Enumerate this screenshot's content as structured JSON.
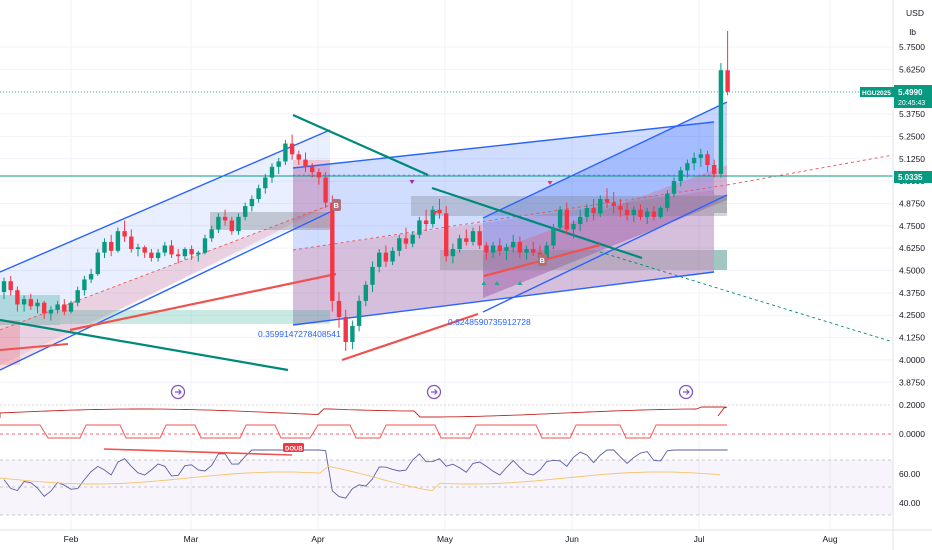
{
  "header": {
    "currency": "USD",
    "unit": "lb"
  },
  "ticker": {
    "symbol": "HGU2025",
    "price": "5.4990",
    "countdown": "20:45:43",
    "level_label": "5.0335",
    "color": "#089981"
  },
  "annotations": {
    "fib_left": "0.3599147278408541",
    "fib_right": "0.8248590735912728",
    "tag_b": "B",
    "tag_doub": "DOUB"
  },
  "colors": {
    "up": "#089981",
    "down": "#f23645",
    "channel_blue": "#2962ff",
    "teal_line": "#00897b",
    "red_line": "#ef5350",
    "osc_line": "#5b5ea6",
    "signal_line": "#f5c26b"
  },
  "chart_data": {
    "type": "candlestick",
    "instrument": "HGU2025",
    "currency": "USD",
    "unit": "lb",
    "price_axis": {
      "ticks": [
        "5.7500",
        "5.6250",
        "5.5000",
        "5.3750",
        "5.2500",
        "5.1250",
        "5.0000",
        "4.8750",
        "4.7500",
        "4.6250",
        "4.5000",
        "4.3750",
        "4.2500",
        "4.1250",
        "4.0000",
        "3.8750"
      ],
      "range": [
        3.82,
        5.86
      ]
    },
    "x_axis": {
      "labels": [
        "Feb",
        "Mar",
        "Apr",
        "May",
        "Jun",
        "Jul",
        "Aug"
      ]
    },
    "last_price": 5.499,
    "horizontal_level": 5.0335,
    "candles": [
      [
        4.38,
        4.46,
        4.34,
        4.44
      ],
      [
        4.44,
        4.47,
        4.36,
        4.39
      ],
      [
        4.39,
        4.41,
        4.27,
        4.31
      ],
      [
        4.31,
        4.36,
        4.27,
        4.34
      ],
      [
        4.34,
        4.37,
        4.28,
        4.3
      ],
      [
        4.3,
        4.34,
        4.26,
        4.32
      ],
      [
        4.32,
        4.33,
        4.23,
        4.26
      ],
      [
        4.26,
        4.3,
        4.22,
        4.28
      ],
      [
        4.28,
        4.33,
        4.26,
        4.31
      ],
      [
        4.31,
        4.34,
        4.25,
        4.27
      ],
      [
        4.27,
        4.33,
        4.26,
        4.32
      ],
      [
        4.32,
        4.41,
        4.3,
        4.39
      ],
      [
        4.39,
        4.47,
        4.36,
        4.45
      ],
      [
        4.45,
        4.51,
        4.43,
        4.48
      ],
      [
        4.48,
        4.62,
        4.47,
        4.6
      ],
      [
        4.6,
        4.68,
        4.57,
        4.66
      ],
      [
        4.66,
        4.7,
        4.58,
        4.61
      ],
      [
        4.61,
        4.74,
        4.6,
        4.72
      ],
      [
        4.72,
        4.78,
        4.66,
        4.69
      ],
      [
        4.69,
        4.73,
        4.6,
        4.62
      ],
      [
        4.62,
        4.65,
        4.58,
        4.63
      ],
      [
        4.63,
        4.64,
        4.57,
        4.6
      ],
      [
        4.6,
        4.62,
        4.55,
        4.57
      ],
      [
        4.57,
        4.62,
        4.55,
        4.6
      ],
      [
        4.6,
        4.66,
        4.58,
        4.64
      ],
      [
        4.64,
        4.67,
        4.57,
        4.59
      ],
      [
        4.59,
        4.62,
        4.54,
        4.58
      ],
      [
        4.58,
        4.63,
        4.56,
        4.62
      ],
      [
        4.62,
        4.64,
        4.56,
        4.59
      ],
      [
        4.59,
        4.61,
        4.55,
        4.6
      ],
      [
        4.6,
        4.7,
        4.59,
        4.68
      ],
      [
        4.68,
        4.75,
        4.66,
        4.73
      ],
      [
        4.73,
        4.82,
        4.71,
        4.8
      ],
      [
        4.8,
        4.84,
        4.75,
        4.78
      ],
      [
        4.78,
        4.8,
        4.7,
        4.72
      ],
      [
        4.72,
        4.82,
        4.7,
        4.8
      ],
      [
        4.8,
        4.88,
        4.78,
        4.86
      ],
      [
        4.86,
        4.92,
        4.83,
        4.9
      ],
      [
        4.9,
        4.98,
        4.88,
        4.96
      ],
      [
        4.96,
        5.04,
        4.93,
        5.02
      ],
      [
        5.02,
        5.1,
        4.99,
        5.08
      ],
      [
        5.08,
        5.13,
        5.04,
        5.11
      ],
      [
        5.11,
        5.23,
        5.09,
        5.21
      ],
      [
        5.21,
        5.26,
        5.12,
        5.15
      ],
      [
        5.15,
        5.17,
        5.09,
        5.12
      ],
      [
        5.12,
        5.16,
        5.05,
        5.08
      ],
      [
        5.08,
        5.1,
        5.02,
        5.05
      ],
      [
        5.05,
        5.07,
        4.98,
        5.02
      ],
      [
        5.02,
        5.05,
        4.85,
        4.88
      ],
      [
        4.88,
        4.92,
        4.27,
        4.33
      ],
      [
        4.33,
        4.38,
        4.18,
        4.24
      ],
      [
        4.24,
        4.28,
        4.05,
        4.1
      ],
      [
        4.1,
        4.22,
        4.06,
        4.19
      ],
      [
        4.19,
        4.36,
        4.16,
        4.33
      ],
      [
        4.33,
        4.44,
        4.3,
        4.42
      ],
      [
        4.42,
        4.55,
        4.38,
        4.52
      ],
      [
        4.52,
        4.62,
        4.49,
        4.6
      ],
      [
        4.6,
        4.64,
        4.52,
        4.55
      ],
      [
        4.55,
        4.63,
        4.53,
        4.61
      ],
      [
        4.61,
        4.7,
        4.58,
        4.68
      ],
      [
        4.68,
        4.74,
        4.62,
        4.65
      ],
      [
        4.65,
        4.72,
        4.63,
        4.7
      ],
      [
        4.7,
        4.8,
        4.68,
        4.78
      ],
      [
        4.78,
        4.84,
        4.72,
        4.76
      ],
      [
        4.76,
        4.86,
        4.74,
        4.84
      ],
      [
        4.84,
        4.9,
        4.79,
        4.82
      ],
      [
        4.82,
        4.86,
        4.55,
        4.58
      ],
      [
        4.58,
        4.65,
        4.54,
        4.62
      ],
      [
        4.62,
        4.7,
        4.6,
        4.68
      ],
      [
        4.68,
        4.73,
        4.64,
        4.66
      ],
      [
        4.66,
        4.74,
        4.64,
        4.72
      ],
      [
        4.72,
        4.75,
        4.62,
        4.64
      ],
      [
        4.64,
        4.66,
        4.56,
        4.6
      ],
      [
        4.6,
        4.66,
        4.57,
        4.64
      ],
      [
        4.64,
        4.68,
        4.58,
        4.61
      ],
      [
        4.61,
        4.65,
        4.56,
        4.63
      ],
      [
        4.63,
        4.7,
        4.6,
        4.66
      ],
      [
        4.66,
        4.69,
        4.57,
        4.6
      ],
      [
        4.6,
        4.64,
        4.56,
        4.62
      ],
      [
        4.62,
        4.66,
        4.58,
        4.6
      ],
      [
        4.6,
        4.64,
        4.54,
        4.57
      ],
      [
        4.57,
        4.66,
        4.56,
        4.64
      ],
      [
        4.64,
        4.76,
        4.62,
        4.74
      ],
      [
        4.74,
        4.86,
        4.72,
        4.84
      ],
      [
        4.84,
        4.88,
        4.7,
        4.73
      ],
      [
        4.73,
        4.78,
        4.68,
        4.76
      ],
      [
        4.76,
        4.84,
        4.72,
        4.8
      ],
      [
        4.8,
        4.87,
        4.77,
        4.85
      ],
      [
        4.85,
        4.9,
        4.78,
        4.82
      ],
      [
        4.82,
        4.92,
        4.8,
        4.9
      ],
      [
        4.9,
        4.96,
        4.85,
        4.88
      ],
      [
        4.88,
        4.94,
        4.82,
        4.86
      ],
      [
        4.86,
        4.9,
        4.8,
        4.84
      ],
      [
        4.84,
        4.88,
        4.78,
        4.81
      ],
      [
        4.81,
        4.86,
        4.77,
        4.84
      ],
      [
        4.84,
        4.87,
        4.78,
        4.8
      ],
      [
        4.8,
        4.85,
        4.76,
        4.83
      ],
      [
        4.83,
        4.86,
        4.78,
        4.8
      ],
      [
        4.8,
        4.86,
        4.79,
        4.85
      ],
      [
        4.85,
        4.95,
        4.83,
        4.93
      ],
      [
        4.93,
        5.02,
        4.91,
        5.0
      ],
      [
        5.0,
        5.08,
        4.97,
        5.06
      ],
      [
        5.06,
        5.12,
        5.02,
        5.1
      ],
      [
        5.1,
        5.16,
        5.06,
        5.13
      ],
      [
        5.13,
        5.18,
        5.08,
        5.15
      ],
      [
        5.15,
        5.17,
        5.05,
        5.09
      ],
      [
        5.09,
        5.12,
        5.02,
        5.04
      ],
      [
        5.04,
        5.66,
        5.02,
        5.62
      ],
      [
        5.62,
        5.84,
        5.48,
        5.5
      ]
    ]
  }
}
